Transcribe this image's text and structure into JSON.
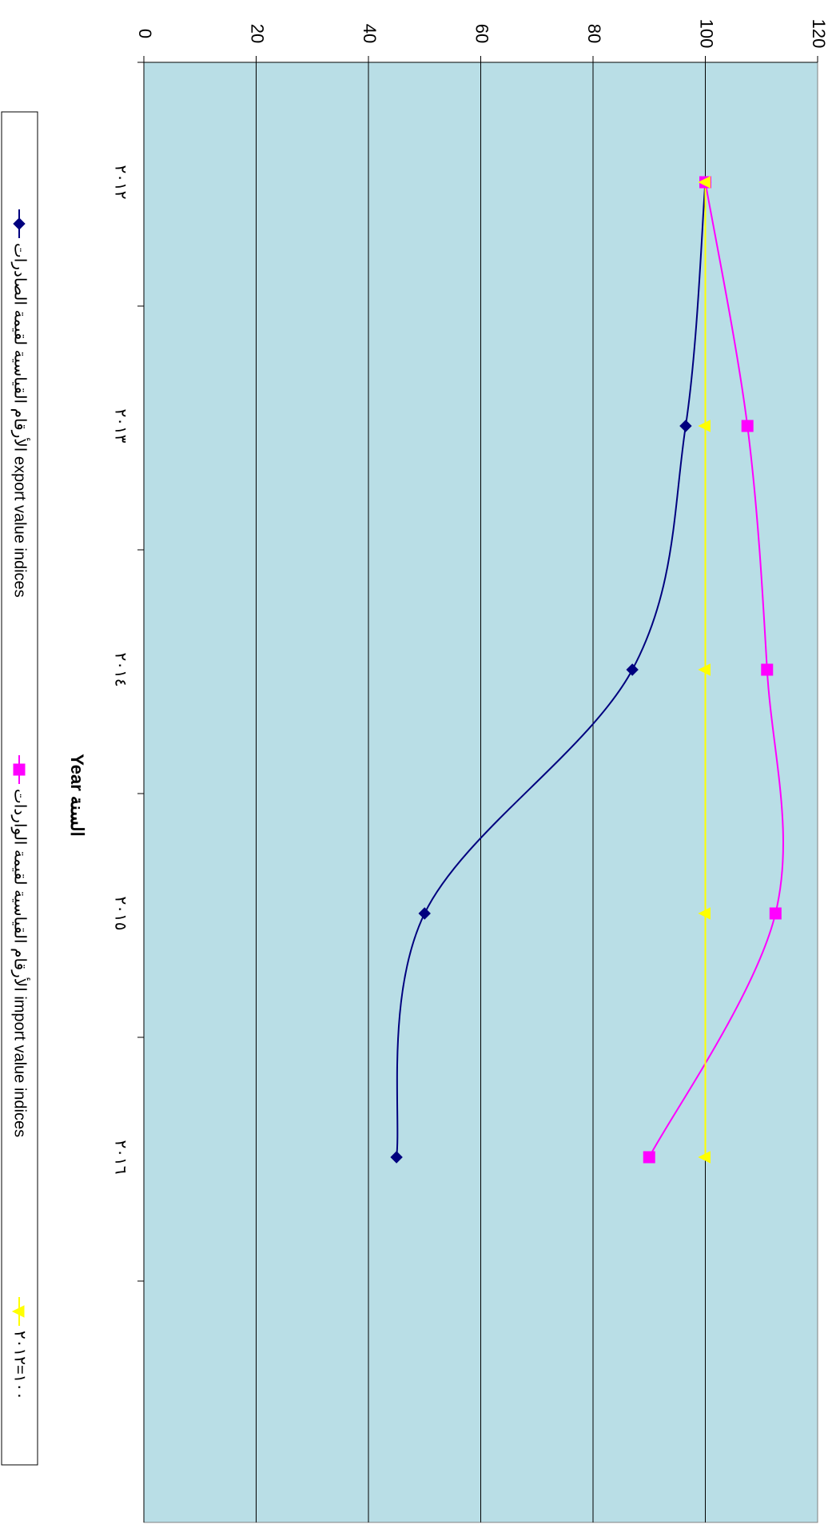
{
  "chart_data": {
    "type": "line",
    "orientation": "rotated-90-clockwise",
    "categories": [
      "٢٠١٢",
      "٢٠١٣",
      "٢٠١٤",
      "٢٠١٥",
      "٢٠١٦"
    ],
    "xlabel": "Year     السنة",
    "ylim": [
      0,
      120
    ],
    "yticks": [
      0,
      20,
      40,
      60,
      80,
      100,
      120
    ],
    "grid": true,
    "legend_position": "bottom",
    "background_color": "#b9dee6",
    "smoothed": true,
    "series": [
      {
        "name": "الأرقام القياسية لقيمة الصادرات export value indices",
        "color": "#00007f",
        "marker": "diamond",
        "values": [
          100,
          96.5,
          87,
          50,
          45
        ]
      },
      {
        "name": "الأرقام القياسية لقيمة الواردات import value indices",
        "color": "#ff00ff",
        "marker": "square",
        "values": [
          100,
          107.5,
          111,
          112.5,
          90
        ]
      },
      {
        "name": "١٠٠=٢٠١٢",
        "color": "#ffff00",
        "marker": "triangle",
        "values": [
          100,
          100,
          100,
          100,
          100
        ]
      }
    ]
  }
}
